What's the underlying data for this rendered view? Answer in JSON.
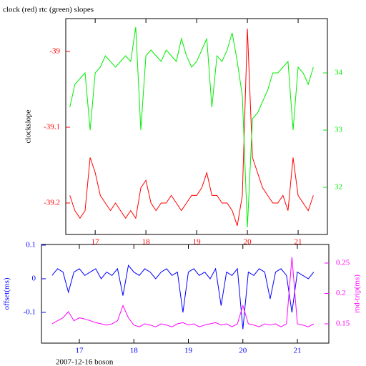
{
  "chart_data": [
    {
      "type": "line",
      "title": "clock (red) rtc (green) slopes",
      "ylabel": "clockslope",
      "x": [
        16.5,
        16.6,
        16.7,
        16.8,
        16.9,
        17.0,
        17.1,
        17.2,
        17.3,
        17.4,
        17.5,
        17.6,
        17.7,
        17.8,
        17.9,
        18.0,
        18.1,
        18.2,
        18.3,
        18.4,
        18.5,
        18.6,
        18.7,
        18.8,
        18.9,
        19.0,
        19.1,
        19.2,
        19.3,
        19.4,
        19.5,
        19.6,
        19.7,
        19.8,
        19.9,
        20.0,
        20.1,
        20.2,
        20.3,
        20.4,
        20.5,
        20.6,
        20.7,
        20.8,
        20.9,
        21.0,
        21.1,
        21.2,
        21.3
      ],
      "xlim": [
        16.42,
        21.577
      ],
      "xticks": [
        17,
        18,
        19,
        20,
        21
      ],
      "ylim": [
        -39.2415,
        -38.9566
      ],
      "yticks": [
        -39,
        -39.1,
        -39.2
      ],
      "y2lim": [
        31.175,
        34.95
      ],
      "y2ticks": [
        32,
        33,
        34
      ],
      "series": [
        {
          "color": "#ff0000",
          "axis": "y",
          "values": [
            -39.19,
            -39.21,
            -39.22,
            -39.21,
            -39.14,
            -39.16,
            -39.19,
            -39.2,
            -39.21,
            -39.2,
            -39.21,
            -39.22,
            -39.21,
            -39.22,
            -39.18,
            -39.17,
            -39.2,
            -39.21,
            -39.2,
            -39.2,
            -39.19,
            -39.2,
            -39.21,
            -39.2,
            -39.19,
            -39.19,
            -39.18,
            -39.16,
            -39.19,
            -39.19,
            -39.2,
            -39.2,
            -39.21,
            -39.23,
            -39.19,
            -38.97,
            -39.14,
            -39.16,
            -39.18,
            -39.19,
            -39.2,
            -39.2,
            -39.19,
            -39.21,
            -39.14,
            -39.19,
            -39.2,
            -39.21,
            -39.19
          ]
        },
        {
          "color": "#00ee00",
          "axis": "y2",
          "values": [
            33.4,
            33.8,
            33.9,
            34.0,
            33.0,
            34.0,
            34.1,
            34.3,
            34.2,
            34.1,
            34.2,
            34.3,
            34.2,
            34.8,
            33.0,
            34.3,
            34.4,
            34.3,
            34.2,
            34.4,
            34.3,
            34.2,
            34.6,
            34.3,
            34.1,
            34.2,
            34.4,
            34.6,
            33.4,
            34.3,
            34.2,
            34.4,
            34.7,
            34.2,
            33.6,
            31.3,
            33.2,
            33.3,
            33.5,
            33.7,
            34.0,
            34.0,
            34.1,
            34.2,
            33.0,
            34.1,
            34.0,
            33.8,
            34.1
          ]
        }
      ]
    },
    {
      "type": "line",
      "ylabel": "offset(ms)",
      "y2label": "rnd-trip(ms)",
      "xlabel": "2007-12-16 boson",
      "x": [
        16.5,
        16.6,
        16.7,
        16.8,
        16.9,
        17.0,
        17.1,
        17.2,
        17.3,
        17.4,
        17.5,
        17.6,
        17.7,
        17.8,
        17.9,
        18.0,
        18.1,
        18.2,
        18.3,
        18.4,
        18.5,
        18.6,
        18.7,
        18.8,
        18.9,
        19.0,
        19.1,
        19.2,
        19.3,
        19.4,
        19.5,
        19.6,
        19.7,
        19.8,
        19.9,
        20.0,
        20.1,
        20.2,
        20.3,
        20.4,
        20.5,
        20.6,
        20.7,
        20.8,
        20.9,
        21.0,
        21.1,
        21.2,
        21.3
      ],
      "xlim": [
        16.305,
        21.577
      ],
      "xticks": [
        17,
        18,
        19,
        20,
        21
      ],
      "ylim": [
        -0.1915,
        0.102
      ],
      "yticks": [
        0.1,
        0,
        -0.1
      ],
      "y2lim": [
        0.1182,
        0.2806
      ],
      "y2ticks": [
        0.25,
        0.2,
        0.15
      ],
      "series": [
        {
          "color": "#0000ff",
          "axis": "y",
          "values": [
            0.01,
            0.03,
            0.02,
            -0.04,
            0.02,
            0.03,
            0.01,
            0.02,
            0.03,
            0.0,
            0.02,
            0.01,
            0.03,
            -0.05,
            0.04,
            0.02,
            0.01,
            0.03,
            0.02,
            0.0,
            0.02,
            0.03,
            0.01,
            0.02,
            -0.1,
            0.02,
            0.03,
            0.01,
            0.02,
            0.0,
            0.03,
            -0.08,
            0.02,
            0.01,
            0.03,
            -0.15,
            0.02,
            0.01,
            0.03,
            0.02,
            -0.06,
            0.02,
            0.03,
            0.01,
            -0.1,
            0.02,
            0.01,
            0.0,
            0.02
          ]
        },
        {
          "color": "#ff00ff",
          "axis": "y2",
          "values": [
            0.15,
            0.155,
            0.16,
            0.17,
            0.155,
            0.16,
            0.158,
            0.155,
            0.152,
            0.15,
            0.148,
            0.15,
            0.155,
            0.18,
            0.16,
            0.148,
            0.145,
            0.15,
            0.148,
            0.145,
            0.15,
            0.148,
            0.145,
            0.15,
            0.152,
            0.148,
            0.15,
            0.145,
            0.148,
            0.15,
            0.152,
            0.148,
            0.15,
            0.145,
            0.15,
            0.18,
            0.15,
            0.148,
            0.145,
            0.15,
            0.148,
            0.15,
            0.145,
            0.15,
            0.26,
            0.15,
            0.148,
            0.145,
            0.15
          ]
        }
      ]
    }
  ]
}
